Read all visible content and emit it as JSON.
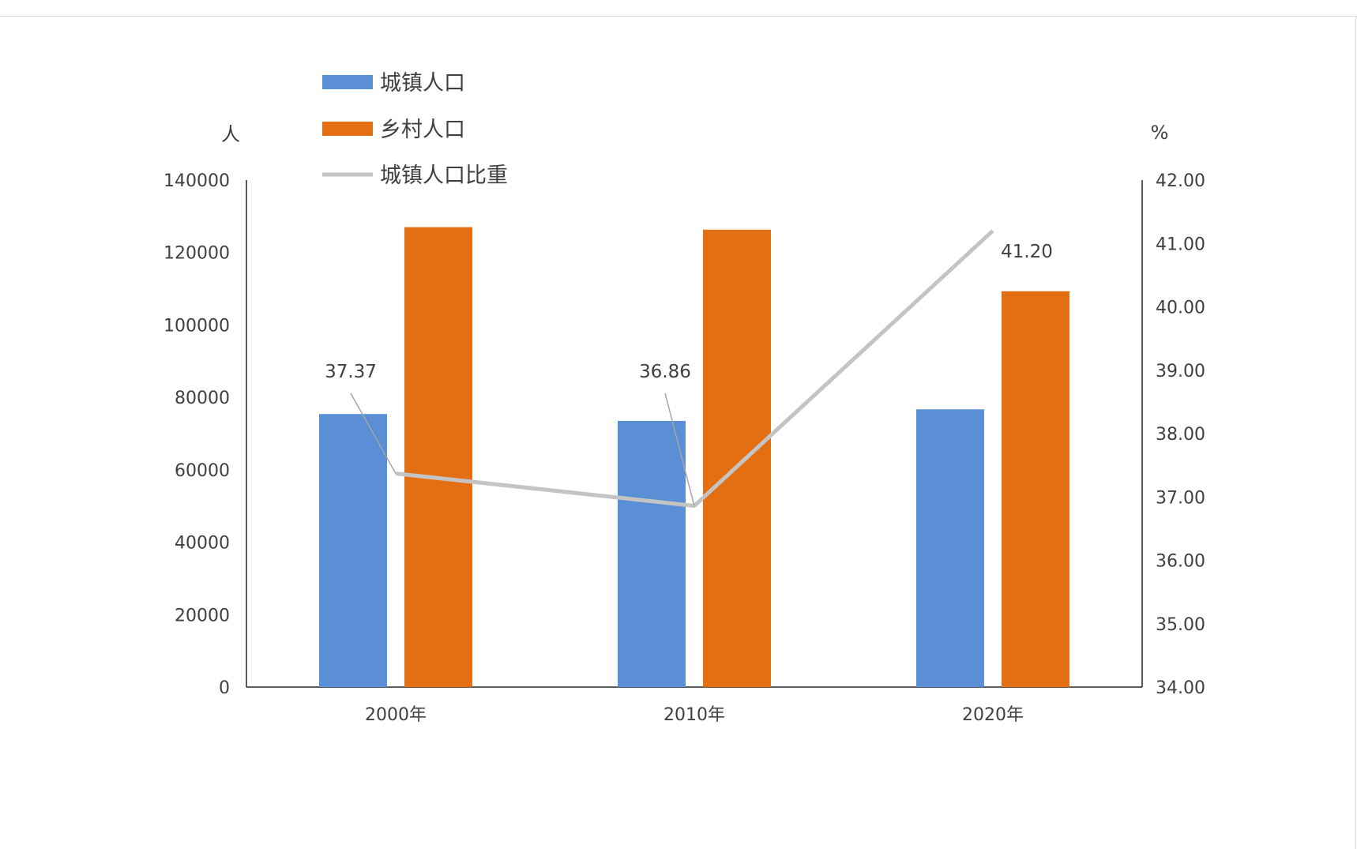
{
  "chart_data": {
    "type": "bar",
    "title": "",
    "categories": [
      "2000年",
      "2010年",
      "2020年"
    ],
    "series": [
      {
        "name": "城镇人口",
        "type": "bar",
        "axis": "left",
        "color": "#5a8fd6",
        "values": [
          75400,
          73500,
          76700
        ]
      },
      {
        "name": "乡村人口",
        "type": "bar",
        "axis": "left",
        "color": "#e46f13",
        "values": [
          127000,
          126300,
          109300
        ]
      },
      {
        "name": "城镇人口比重",
        "type": "line",
        "axis": "right",
        "color": "#c4c4c4",
        "values": [
          37.37,
          36.86,
          41.2
        ],
        "labels": [
          "37.37",
          "36.86",
          "41.20"
        ]
      }
    ],
    "y_left": {
      "unit": "人",
      "min": 0,
      "max": 140000,
      "ticks": [
        "0",
        "20000",
        "40000",
        "60000",
        "80000",
        "100000",
        "120000",
        "140000"
      ]
    },
    "y_right": {
      "unit": "%",
      "min": 34,
      "max": 42,
      "ticks": [
        "34.00",
        "35.00",
        "36.00",
        "37.00",
        "38.00",
        "39.00",
        "40.00",
        "41.00",
        "42.00"
      ]
    },
    "legend_position": "top-left",
    "grid": false
  }
}
